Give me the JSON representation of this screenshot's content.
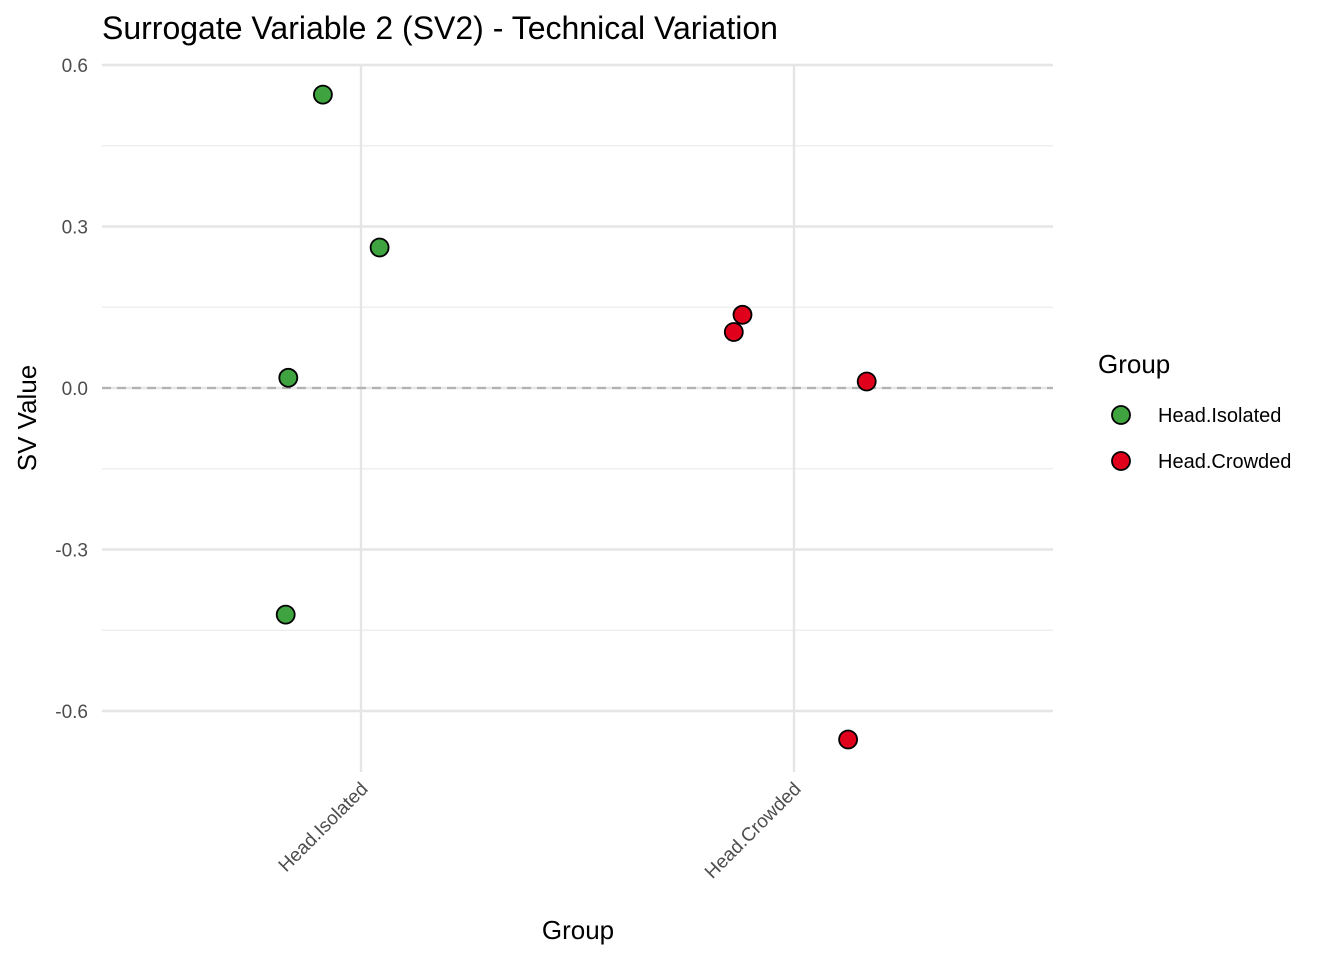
{
  "chart_data": {
    "type": "scatter",
    "title": "Surrogate Variable 2 (SV2) - Technical Variation",
    "xlabel": "Group",
    "ylabel": "SV Value",
    "categories": [
      "Head.Isolated",
      "Head.Crowded"
    ],
    "ylim": [
      -0.745,
      0.6
    ],
    "yticks": [
      0.6,
      0.3,
      0.0,
      -0.3,
      -0.6
    ],
    "ytick_labels": [
      "0.6",
      "0.3",
      "0.0",
      "-0.3",
      "-0.6"
    ],
    "reference_line": {
      "y": 0.0,
      "style": "dashed",
      "color": "#b3b3b3"
    },
    "grid": true,
    "legend": {
      "title": "Group",
      "position": "right",
      "entries": [
        {
          "label": "Head.Isolated",
          "color": "#3fa33f"
        },
        {
          "label": "Head.Crowded",
          "color": "#e0001b"
        }
      ]
    },
    "series": [
      {
        "name": "Head.Isolated",
        "color": "#3fa33f",
        "points": [
          {
            "x": "Head.Isolated",
            "jitter": -0.088,
            "y": 0.545
          },
          {
            "x": "Head.Isolated",
            "jitter": 0.043,
            "y": 0.261
          },
          {
            "x": "Head.Isolated",
            "jitter": -0.168,
            "y": 0.019
          },
          {
            "x": "Head.Isolated",
            "jitter": -0.174,
            "y": -0.421
          }
        ]
      },
      {
        "name": "Head.Crowded",
        "color": "#e0001b",
        "points": [
          {
            "x": "Head.Crowded",
            "jitter": -0.119,
            "y": 0.136
          },
          {
            "x": "Head.Crowded",
            "jitter": -0.139,
            "y": 0.104
          },
          {
            "x": "Head.Crowded",
            "jitter": 0.168,
            "y": 0.012
          },
          {
            "x": "Head.Crowded",
            "jitter": 0.125,
            "y": -0.653
          }
        ]
      }
    ]
  }
}
